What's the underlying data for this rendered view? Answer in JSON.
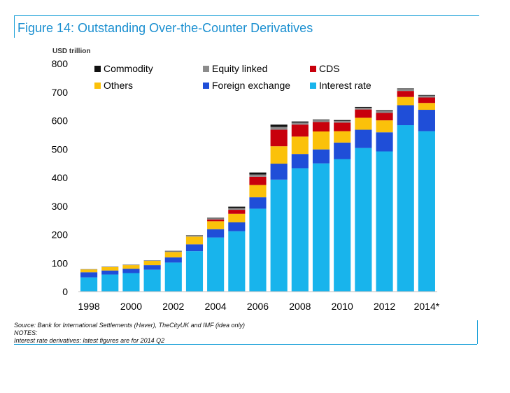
{
  "title": "Figure 14: Outstanding Over-the-Counter Derivatives",
  "colors": {
    "frame": "#1aa0d8",
    "title": "#1a8fd0"
  },
  "chart_data": {
    "type": "bar",
    "stacked": true,
    "unit_label": "USD trillion",
    "ylim": [
      0,
      800
    ],
    "yticks": [
      0,
      100,
      200,
      300,
      400,
      500,
      600,
      700,
      800
    ],
    "grid": false,
    "legend_position": "top",
    "categories": [
      "1998",
      "1999",
      "2000",
      "2001",
      "2002",
      "2003",
      "2004",
      "2005",
      "2006",
      "2007",
      "2008",
      "2009",
      "2010",
      "2011",
      "2012",
      "2013",
      "2014*"
    ],
    "xtick_labels": [
      "1998",
      "",
      "2000",
      "",
      "2002",
      "",
      "2004",
      "",
      "2006",
      "",
      "2008",
      "",
      "2010",
      "",
      "2012",
      "",
      "2014*"
    ],
    "series": [
      {
        "name": "Interest rate",
        "color": "#18b4ec",
        "values": [
          50,
          60,
          65,
          77,
          102,
          142,
          190,
          212,
          291,
          393,
          433,
          450,
          465,
          504,
          492,
          584,
          563
        ]
      },
      {
        "name": "Foreign exchange",
        "color": "#1f4ed8",
        "values": [
          18,
          14,
          15,
          16,
          18,
          24,
          29,
          31,
          40,
          56,
          50,
          49,
          58,
          64,
          67,
          70,
          75
        ]
      },
      {
        "name": "Others",
        "color": "#fbc10a",
        "values": [
          10,
          12,
          13,
          15,
          19,
          27,
          28,
          30,
          43,
          61,
          61,
          63,
          40,
          42,
          42,
          29,
          24
        ]
      },
      {
        "name": "CDS",
        "color": "#c8000c",
        "values": [
          0,
          0,
          0,
          0,
          0,
          0,
          6,
          14,
          29,
          58,
          42,
          33,
          30,
          29,
          26,
          21,
          19
        ]
      },
      {
        "name": "Equity linked",
        "color": "#8c8c8c",
        "values": [
          1,
          2,
          2,
          2,
          3,
          4,
          4,
          6,
          8,
          10,
          7,
          7,
          6,
          6,
          6,
          7,
          7
        ]
      },
      {
        "name": "Commodity",
        "color": "#111111",
        "values": [
          0,
          0,
          0,
          0,
          1,
          1,
          2,
          5,
          7,
          8,
          4,
          2,
          3,
          3,
          3,
          2,
          2
        ]
      }
    ],
    "legend_order": [
      "Commodity",
      "Equity linked",
      "CDS",
      "Others",
      "Foreign exchange",
      "Interest rate"
    ]
  },
  "notes": [
    "Source: Bank for International Settlements (Haver), TheCityUK and IMF (idea only)",
    "NOTES:",
    "Interest rate derivatives: latest figures are for 2014 Q2"
  ]
}
